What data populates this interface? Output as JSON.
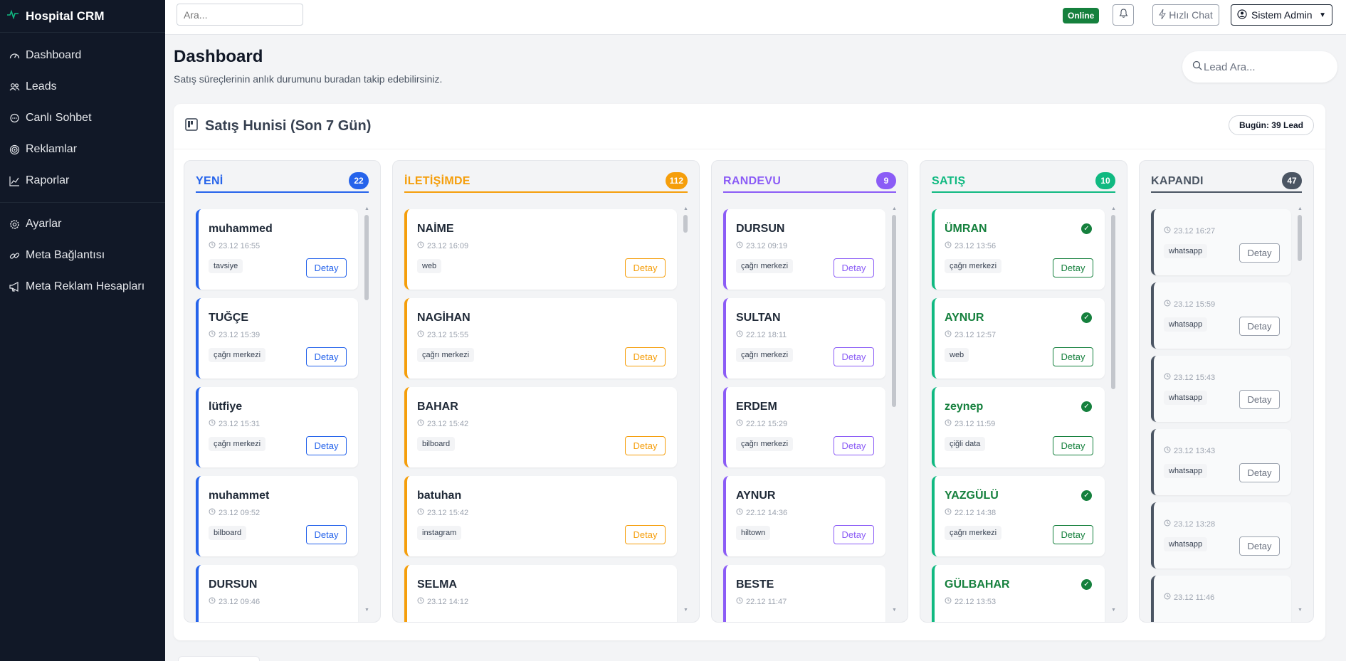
{
  "app": {
    "title": "Hospital CRM"
  },
  "sidebar": {
    "items": [
      {
        "label": "Dashboard",
        "icon": "dashboard-icon"
      },
      {
        "label": "Leads",
        "icon": "users-icon"
      },
      {
        "label": "Canlı Sohbet",
        "icon": "chat-icon"
      },
      {
        "label": "Reklamlar",
        "icon": "target-icon"
      },
      {
        "label": "Raporlar",
        "icon": "chart-icon"
      }
    ],
    "items2": [
      {
        "label": "Ayarlar",
        "icon": "gear-icon"
      },
      {
        "label": "Meta Bağlantısı",
        "icon": "link-icon"
      },
      {
        "label": "Meta Reklam Hesapları",
        "icon": "megaphone-icon"
      }
    ]
  },
  "topbar": {
    "search_placeholder": "Ara...",
    "status": "Online",
    "chat_label": "Hızlı Chat",
    "user_label": "Sistem Admin"
  },
  "header": {
    "title": "Dashboard",
    "subtitle": "Satış süreçlerinin anlık durumunu buradan takip edebilirsiniz.",
    "lead_search_placeholder": "Lead Ara..."
  },
  "funnel": {
    "title": "Satış Hunisi (Son 7 Gün)",
    "today_prefix": "Bugün:",
    "today_count": "39",
    "today_suffix": "Lead",
    "detail_label": "Detay",
    "columns": [
      {
        "key": "yeni",
        "title": "YENİ",
        "count": "22",
        "color": "#2563eb",
        "cards": [
          {
            "name": "muhammed",
            "time": "23.12 16:55",
            "tag": "tavsiye"
          },
          {
            "name": "TUĞÇE",
            "time": "23.12 15:39",
            "tag": "çağrı merkezi"
          },
          {
            "name": "lütfiye",
            "time": "23.12 15:31",
            "tag": "çağrı merkezi"
          },
          {
            "name": "muhammet",
            "time": "23.12 09:52",
            "tag": "bilboard"
          },
          {
            "name": "DURSUN",
            "time": "23.12 09:46",
            "tag": ""
          }
        ]
      },
      {
        "key": "iletisimde",
        "title": "İLETİŞİMDE",
        "count": "112",
        "color": "#f59e0b",
        "cards": [
          {
            "name": "NAİME",
            "time": "23.12 16:09",
            "tag": "web"
          },
          {
            "name": "NAGİHAN",
            "time": "23.12 15:55",
            "tag": "çağrı merkezi"
          },
          {
            "name": "BAHAR",
            "time": "23.12 15:42",
            "tag": "bilboard"
          },
          {
            "name": "batuhan",
            "time": "23.12 15:42",
            "tag": "instagram"
          },
          {
            "name": "SELMA",
            "time": "23.12 14:12",
            "tag": ""
          }
        ]
      },
      {
        "key": "randevu",
        "title": "RANDEVU",
        "count": "9",
        "color": "#8b5cf6",
        "cards": [
          {
            "name": "DURSUN",
            "time": "23.12 09:19",
            "tag": "çağrı merkezi"
          },
          {
            "name": "SULTAN",
            "time": "22.12 18:11",
            "tag": "çağrı merkezi"
          },
          {
            "name": "ERDEM",
            "time": "22.12 15:29",
            "tag": "çağrı merkezi"
          },
          {
            "name": "AYNUR",
            "time": "22.12 14:36",
            "tag": "hiltown"
          },
          {
            "name": "BESTE",
            "time": "22.12 11:47",
            "tag": ""
          }
        ]
      },
      {
        "key": "satis",
        "title": "SATIŞ",
        "count": "10",
        "color": "#10b981",
        "cards": [
          {
            "name": "ÜMRAN",
            "time": "23.12 13:56",
            "tag": "çağrı merkezi"
          },
          {
            "name": "AYNUR",
            "time": "23.12 12:57",
            "tag": "web"
          },
          {
            "name": "zeynep",
            "time": "23.12 11:59",
            "tag": "çiğli data"
          },
          {
            "name": "YAZGÜLÜ",
            "time": "22.12 14:38",
            "tag": "çağrı merkezi"
          },
          {
            "name": "GÜLBAHAR",
            "time": "22.12 13:53",
            "tag": ""
          }
        ]
      },
      {
        "key": "kapandi",
        "title": "KAPANDI",
        "count": "47",
        "color": "#4b5563",
        "cards": [
          {
            "name": "",
            "time": "23.12 16:27",
            "tag": "whatsapp"
          },
          {
            "name": "",
            "time": "23.12 15:59",
            "tag": "whatsapp"
          },
          {
            "name": "",
            "time": "23.12 15:43",
            "tag": "whatsapp"
          },
          {
            "name": "",
            "time": "23.12 13:43",
            "tag": "whatsapp"
          },
          {
            "name": "",
            "time": "23.12 13:28",
            "tag": "whatsapp"
          },
          {
            "name": "",
            "time": "23.12 11:46",
            "tag": ""
          }
        ]
      }
    ]
  }
}
